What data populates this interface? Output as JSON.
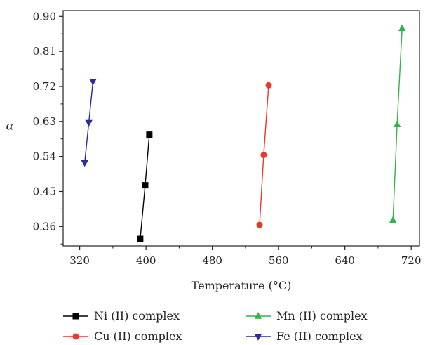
{
  "chart_data": {
    "type": "line",
    "xlabel": "Temperature (°C)",
    "ylabel": "α",
    "xlim": [
      300,
      730
    ],
    "ylim": [
      0.31,
      0.915
    ],
    "xticks": [
      320,
      400,
      480,
      560,
      640,
      720
    ],
    "yticks": [
      0.36,
      0.45,
      0.54,
      0.63,
      0.72,
      0.81,
      0.9
    ],
    "xtick_labels": [
      "320",
      "400",
      "480",
      "560",
      "640",
      "720"
    ],
    "ytick_labels": [
      "0.36",
      "0.45",
      "0.54",
      "0.63",
      "0.72",
      "0.81",
      "0.90"
    ],
    "grid": false,
    "legend_position": "bottom",
    "series": [
      {
        "name": "Ni (II) complex",
        "color": "#000000",
        "marker": "square",
        "points": [
          {
            "x": 393,
            "y": 0.328
          },
          {
            "x": 399,
            "y": 0.466
          },
          {
            "x": 404,
            "y": 0.596
          }
        ]
      },
      {
        "name": "Cu (II) complex",
        "color": "#e8392b",
        "marker": "circle",
        "points": [
          {
            "x": 537,
            "y": 0.364
          },
          {
            "x": 542,
            "y": 0.544
          },
          {
            "x": 548,
            "y": 0.723
          }
        ]
      },
      {
        "name": "Mn (II) complex",
        "color": "#33b34a",
        "marker": "triangle-up",
        "points": [
          {
            "x": 698,
            "y": 0.376
          },
          {
            "x": 703,
            "y": 0.622
          },
          {
            "x": 709,
            "y": 0.869
          }
        ]
      },
      {
        "name": "Fe (II) complex",
        "color": "#2b2b9c",
        "marker": "triangle-down",
        "points": [
          {
            "x": 326,
            "y": 0.524
          },
          {
            "x": 331,
            "y": 0.627
          },
          {
            "x": 336,
            "y": 0.733
          }
        ]
      }
    ],
    "legend_order": [
      0,
      2,
      1,
      3
    ]
  }
}
